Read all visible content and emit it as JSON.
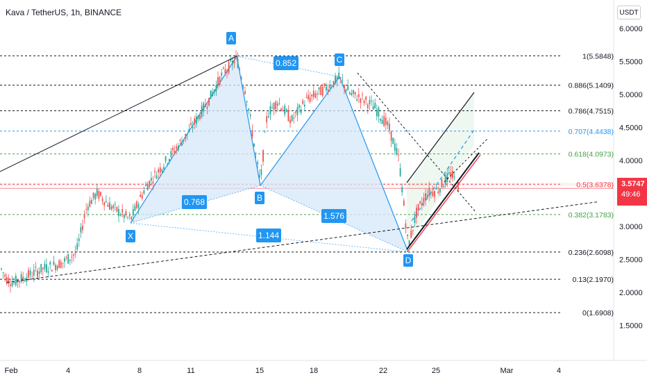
{
  "header": {
    "title": "Kava / TetherUS, 1h, BINANCE"
  },
  "currency_button": "USDT",
  "last_price": {
    "price": "3.5747",
    "countdown": "49:46"
  },
  "colors": {
    "pattern_fill": "#d6e7f8",
    "pattern_line": "#2196f3",
    "label_bg": "#2196f3",
    "price_line": "#f23645",
    "fib_black": "#131722",
    "fib_blue": "#2196f3",
    "fib_green": "#43a047",
    "fib_red": "#f23645",
    "candle_up": "#26a69a",
    "candle_down": "#ef5350",
    "channel_fill": "#e8f5e9"
  },
  "chart_data": {
    "type": "candlestick",
    "symbol": "Kava / TetherUS",
    "interval": "1h",
    "exchange": "BINANCE",
    "y_axis": {
      "ticks": [
        "6.0000",
        "5.5000",
        "5.0000",
        "4.5000",
        "4.0000",
        "3.5000",
        "3.0000",
        "2.5000",
        "2.0000",
        "1.5000"
      ],
      "tick_values": [
        6.0,
        5.5,
        5.0,
        4.5,
        4.0,
        3.5,
        3.0,
        2.5,
        2.0,
        1.5
      ],
      "range": [
        1.2,
        6.2
      ]
    },
    "x_axis": {
      "ticks": [
        "Feb",
        "4",
        "8",
        "11",
        "15",
        "18",
        "22",
        "25",
        "Mar",
        "4"
      ]
    },
    "fib_levels": [
      {
        "label": "1(5.5848)",
        "value": 5.5848,
        "color": "#131722"
      },
      {
        "label": "0.886(5.1409)",
        "value": 5.1409,
        "color": "#131722"
      },
      {
        "label": "0.786(4.7515)",
        "value": 4.7515,
        "color": "#131722"
      },
      {
        "label": "0.707(4.4438)",
        "value": 4.4438,
        "color": "#2196f3"
      },
      {
        "label": "0.618(4.0973)",
        "value": 4.0973,
        "color": "#43a047"
      },
      {
        "label": "0.5(3.6378)",
        "value": 3.6378,
        "color": "#f23645"
      },
      {
        "label": "0.382(3.1783)",
        "value": 3.1783,
        "color": "#43a047"
      },
      {
        "label": "0.236(2.6098)",
        "value": 2.6098,
        "color": "#131722"
      },
      {
        "label": "0.13(2.1970)",
        "value": 2.197,
        "color": "#131722"
      },
      {
        "label": "0(1.6908)",
        "value": 1.6908,
        "color": "#131722"
      }
    ],
    "harmonic_pattern": {
      "points": [
        {
          "name": "X",
          "value": 3.05
        },
        {
          "name": "A",
          "value": 5.58
        },
        {
          "name": "B",
          "value": 3.62
        },
        {
          "name": "C",
          "value": 5.27
        },
        {
          "name": "D",
          "value": 2.61
        }
      ],
      "ratios": [
        {
          "label": "0.852",
          "between": "A-C"
        },
        {
          "label": "0.768",
          "between": "X-B"
        },
        {
          "label": "1.576",
          "between": "B-D"
        },
        {
          "label": "1.144",
          "between": "X-D"
        }
      ]
    },
    "current_price": 3.5747
  }
}
